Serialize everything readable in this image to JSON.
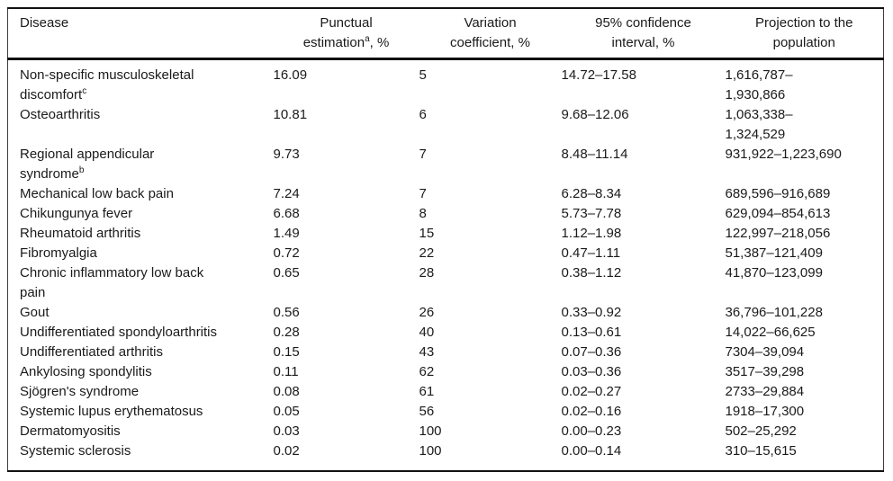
{
  "colors": {
    "text": "#1a1a1a",
    "rule": "#111111",
    "background": "#ffffff"
  },
  "table": {
    "columns": [
      {
        "line1": "Disease"
      },
      {
        "line1": "Punctual",
        "line2_pre": "estimation",
        "line2_sup": "a",
        "line2_post": ", %"
      },
      {
        "line1": "Variation",
        "line2_pre": "coefficient, %"
      },
      {
        "line1": "95% confidence",
        "line2_pre": "interval, %"
      },
      {
        "line1": "Projection to the",
        "line2_pre": "population"
      }
    ],
    "rows": [
      {
        "disease": "Non-specific musculoskeletal\ndiscomfort",
        "disease_sup": "c",
        "punctual": "16.09",
        "variation": "5",
        "ci": "14.72–17.58",
        "projection": "1,616,787–\n1,930,866"
      },
      {
        "disease": "Osteoarthritis",
        "punctual": "10.81",
        "variation": "6",
        "ci": "9.68–12.06",
        "projection": "1,063,338–\n1,324,529"
      },
      {
        "disease": "Regional appendicular\nsyndrome",
        "disease_sup": "b",
        "punctual": "9.73",
        "variation": "7",
        "ci": "8.48–11.14",
        "projection": "931,922–1,223,690"
      },
      {
        "disease": "Mechanical low back pain",
        "punctual": "7.24",
        "variation": "7",
        "ci": "6.28–8.34",
        "projection": "689,596–916,689"
      },
      {
        "disease": "Chikungunya fever",
        "punctual": "6.68",
        "variation": "8",
        "ci": "5.73–7.78",
        "projection": "629,094–854,613"
      },
      {
        "disease": "Rheumatoid arthritis",
        "punctual": "1.49",
        "variation": "15",
        "ci": "1.12–1.98",
        "projection": "122,997–218,056"
      },
      {
        "disease": "Fibromyalgia",
        "punctual": "0.72",
        "variation": "22",
        "ci": "0.47–1.11",
        "projection": "51,387–121,409"
      },
      {
        "disease": "Chronic inflammatory low back\npain",
        "punctual": "0.65",
        "variation": "28",
        "ci": "0.38–1.12",
        "projection": "41,870–123,099"
      },
      {
        "disease": "Gout",
        "punctual": "0.56",
        "variation": "26",
        "ci": "0.33–0.92",
        "projection": "36,796–101,228"
      },
      {
        "disease": "Undifferentiated spondyloarthritis",
        "punctual": "0.28",
        "variation": "40",
        "ci": "0.13–0.61",
        "projection": "14,022–66,625"
      },
      {
        "disease": "Undifferentiated arthritis",
        "punctual": "0.15",
        "variation": "43",
        "ci": "0.07–0.36",
        "projection": "7304–39,094"
      },
      {
        "disease": "Ankylosing spondylitis",
        "punctual": "0.11",
        "variation": "62",
        "ci": "0.03–0.36",
        "projection": "3517–39,298"
      },
      {
        "disease": "Sjögren's syndrome",
        "punctual": "0.08",
        "variation": "61",
        "ci": "0.02–0.27",
        "projection": "2733–29,884"
      },
      {
        "disease": "Systemic lupus erythematosus",
        "punctual": "0.05",
        "variation": "56",
        "ci": "0.02–0.16",
        "projection": "1918–17,300"
      },
      {
        "disease": "Dermatomyositis",
        "punctual": "0.03",
        "variation": "100",
        "ci": "0.00–0.23",
        "projection": "502–25,292"
      },
      {
        "disease": "Systemic sclerosis",
        "punctual": "0.02",
        "variation": "100",
        "ci": "0.00–0.14",
        "projection": "310–15,615"
      }
    ]
  }
}
